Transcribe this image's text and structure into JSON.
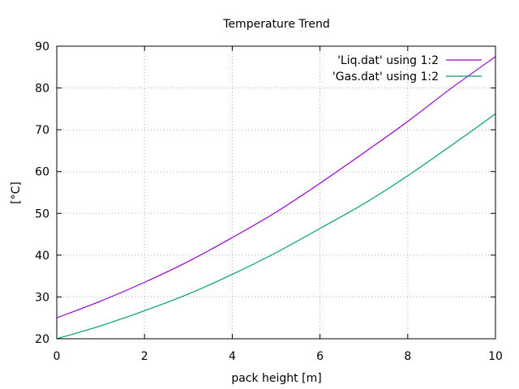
{
  "chart_data": {
    "type": "line",
    "title": "Temperature Trend",
    "xlabel": "pack height [m]",
    "ylabel": "[°C]",
    "xlim": [
      0,
      10
    ],
    "ylim": [
      20,
      90
    ],
    "xticks": [
      0,
      2,
      4,
      6,
      8,
      10
    ],
    "yticks": [
      20,
      30,
      40,
      50,
      60,
      70,
      80,
      90
    ],
    "x_tick_labels": [
      "0",
      "2",
      "4",
      "6",
      "8",
      "10"
    ],
    "y_tick_labels": [
      "20",
      "30",
      "40",
      "50",
      "60",
      "70",
      "80",
      "90"
    ],
    "grid": true,
    "legend_position": "top-right",
    "series": [
      {
        "name": "'Liq.dat' using 1:2",
        "color": "#9400d3",
        "x": [
          0,
          1,
          2,
          3,
          4,
          5,
          6,
          7,
          8,
          9,
          10
        ],
        "y": [
          25,
          29,
          33.5,
          38.5,
          44.2,
          50.3,
          57.2,
          64.5,
          72,
          80,
          87.5
        ]
      },
      {
        "name": "'Gas.dat' using 1:2",
        "color": "#009e73",
        "x": [
          0,
          1,
          2,
          3,
          4,
          5,
          6,
          7,
          8,
          9,
          10
        ],
        "y": [
          20,
          23.1,
          26.7,
          30.7,
          35.4,
          40.6,
          46.4,
          52.3,
          59,
          66.3,
          73.8
        ]
      }
    ]
  }
}
